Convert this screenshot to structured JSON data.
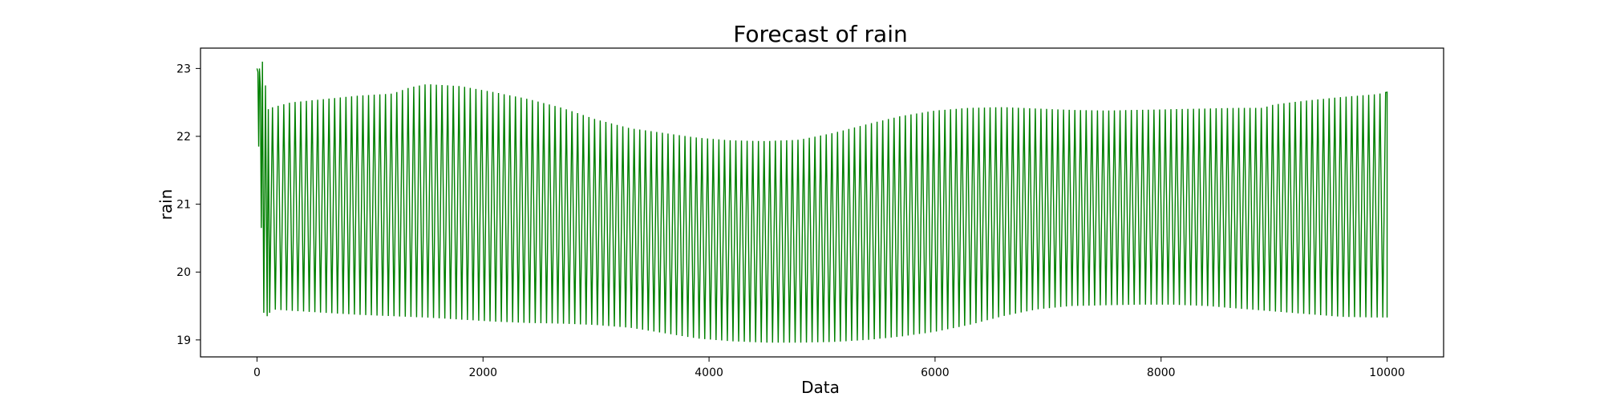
{
  "chart_data": {
    "type": "line",
    "title": "Forecast of rain",
    "xlabel": "Data",
    "ylabel": "rain",
    "xlim": [
      -500,
      10500
    ],
    "ylim": [
      18.75,
      23.3
    ],
    "xticks": [
      0,
      2000,
      4000,
      6000,
      8000,
      10000
    ],
    "xtick_labels": [
      "0",
      "2000",
      "4000",
      "6000",
      "8000",
      "10000"
    ],
    "yticks": [
      19,
      20,
      21,
      22,
      23
    ],
    "ytick_labels": [
      "19",
      "20",
      "21",
      "22",
      "23"
    ],
    "grid": false,
    "legend": "none",
    "color": "#008000",
    "series": [
      {
        "period": 50,
        "x_start": 0,
        "x_end": 10000,
        "initial_points": [
          [
            0,
            23.0
          ],
          [
            8,
            22.95
          ],
          [
            15,
            21.85
          ],
          [
            22,
            23.0
          ],
          [
            30,
            22.7
          ],
          [
            38,
            20.65
          ],
          [
            48,
            23.1
          ],
          [
            60,
            19.4
          ],
          [
            75,
            22.75
          ],
          [
            90,
            19.35
          ],
          [
            100,
            22.4
          ],
          [
            112,
            19.4
          ]
        ],
        "upper_envelope": [
          [
            120,
            22.42
          ],
          [
            300,
            22.5
          ],
          [
            600,
            22.55
          ],
          [
            900,
            22.6
          ],
          [
            1200,
            22.63
          ],
          [
            1350,
            22.72
          ],
          [
            1500,
            22.77
          ],
          [
            1800,
            22.74
          ],
          [
            2100,
            22.65
          ],
          [
            2400,
            22.55
          ],
          [
            2700,
            22.42
          ],
          [
            3000,
            22.25
          ],
          [
            3300,
            22.12
          ],
          [
            3600,
            22.05
          ],
          [
            3900,
            21.98
          ],
          [
            4200,
            21.94
          ],
          [
            4500,
            21.93
          ],
          [
            4800,
            21.95
          ],
          [
            5100,
            22.05
          ],
          [
            5400,
            22.18
          ],
          [
            5700,
            22.3
          ],
          [
            6000,
            22.38
          ],
          [
            6300,
            22.42
          ],
          [
            6600,
            22.43
          ],
          [
            6900,
            22.41
          ],
          [
            7200,
            22.39
          ],
          [
            7500,
            22.38
          ],
          [
            7800,
            22.39
          ],
          [
            8100,
            22.4
          ],
          [
            8400,
            22.41
          ],
          [
            8700,
            22.42
          ],
          [
            8900,
            22.42
          ],
          [
            9000,
            22.47
          ],
          [
            9300,
            22.53
          ],
          [
            9600,
            22.58
          ],
          [
            9900,
            22.62
          ],
          [
            10000,
            22.65
          ]
        ],
        "lower_envelope": [
          [
            120,
            19.45
          ],
          [
            300,
            19.43
          ],
          [
            600,
            19.4
          ],
          [
            900,
            19.37
          ],
          [
            1200,
            19.35
          ],
          [
            1500,
            19.33
          ],
          [
            1800,
            19.3
          ],
          [
            2100,
            19.27
          ],
          [
            2400,
            19.25
          ],
          [
            2700,
            19.24
          ],
          [
            3000,
            19.22
          ],
          [
            3300,
            19.18
          ],
          [
            3600,
            19.1
          ],
          [
            3900,
            19.02
          ],
          [
            4200,
            18.98
          ],
          [
            4500,
            18.96
          ],
          [
            4800,
            18.96
          ],
          [
            5100,
            18.97
          ],
          [
            5400,
            19.0
          ],
          [
            5700,
            19.05
          ],
          [
            6000,
            19.12
          ],
          [
            6300,
            19.22
          ],
          [
            6600,
            19.35
          ],
          [
            6900,
            19.45
          ],
          [
            7200,
            19.5
          ],
          [
            7500,
            19.51
          ],
          [
            7800,
            19.52
          ],
          [
            8100,
            19.52
          ],
          [
            8400,
            19.5
          ],
          [
            8700,
            19.46
          ],
          [
            9000,
            19.42
          ],
          [
            9300,
            19.38
          ],
          [
            9600,
            19.34
          ],
          [
            9900,
            19.33
          ],
          [
            10000,
            19.33
          ]
        ]
      }
    ]
  }
}
